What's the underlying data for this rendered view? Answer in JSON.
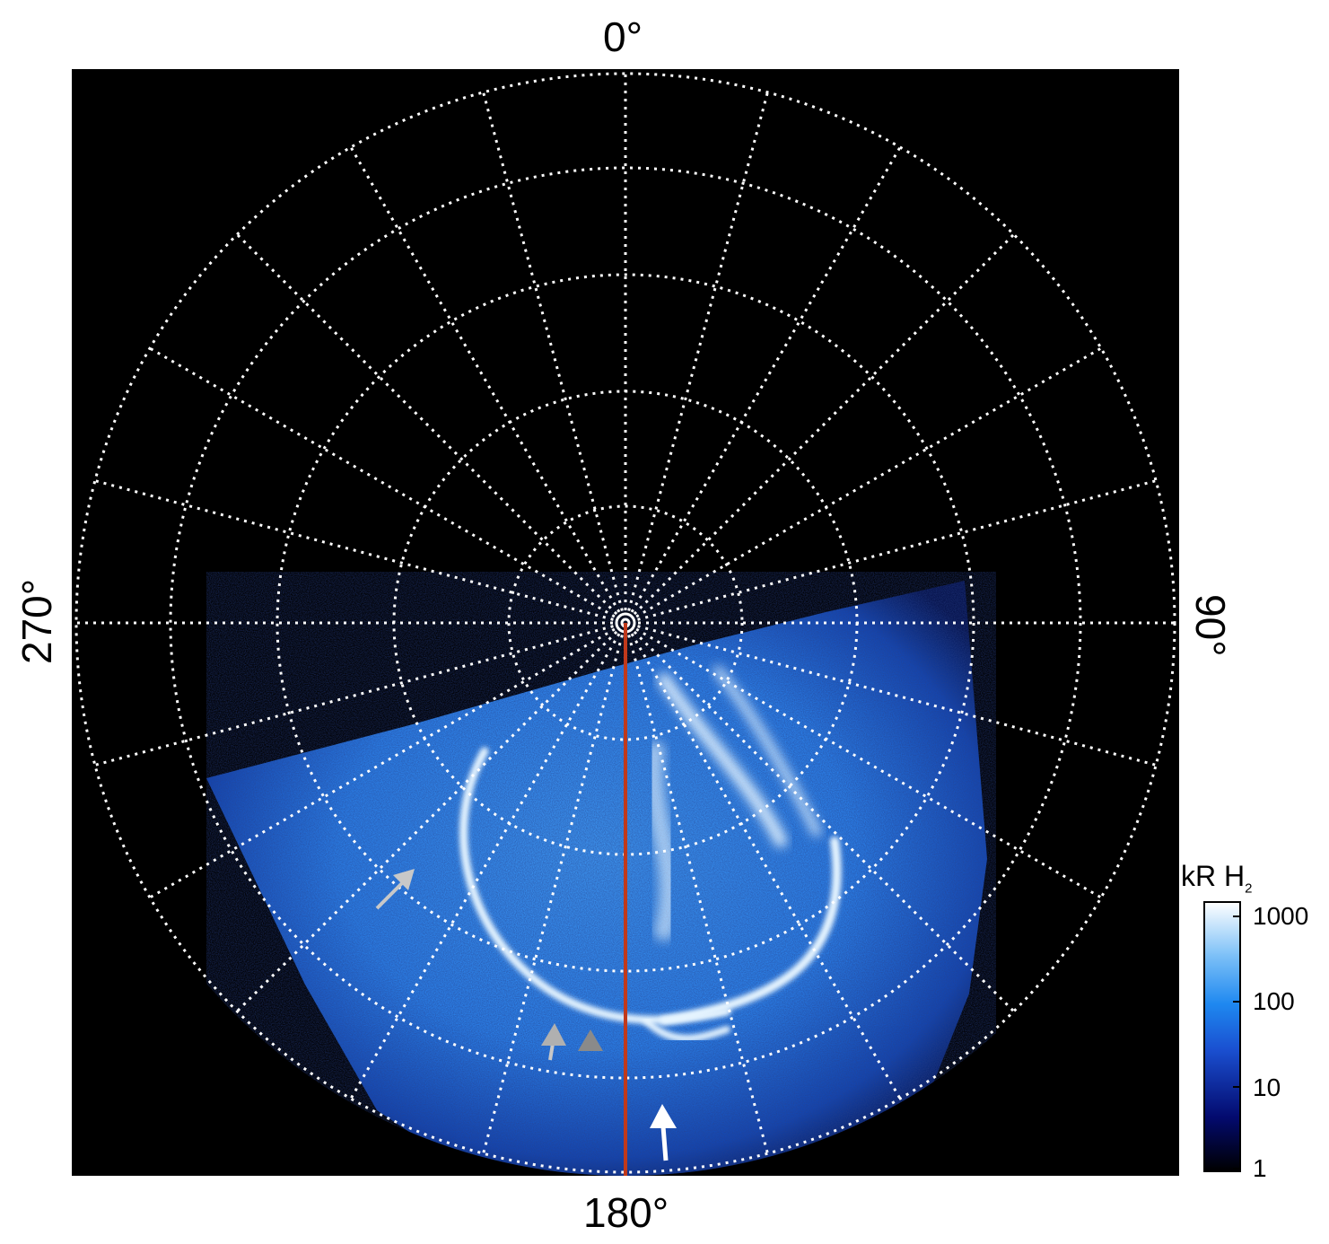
{
  "axis_labels": {
    "top": "0°",
    "bottom": "180°",
    "left": "270°",
    "right": "90°"
  },
  "colorbar": {
    "title": "kR H",
    "title_subscript": "2",
    "ticks": [
      "1000",
      "100",
      "10",
      "1"
    ]
  },
  "colors": {
    "background_plot": "#000000",
    "grid": "#ffffff",
    "meridian_line": "#c0391b",
    "aurora_bright": "#e8f6ff",
    "aurora_mid": "#2a7fe8",
    "aurora_dark": "#06124a"
  }
}
